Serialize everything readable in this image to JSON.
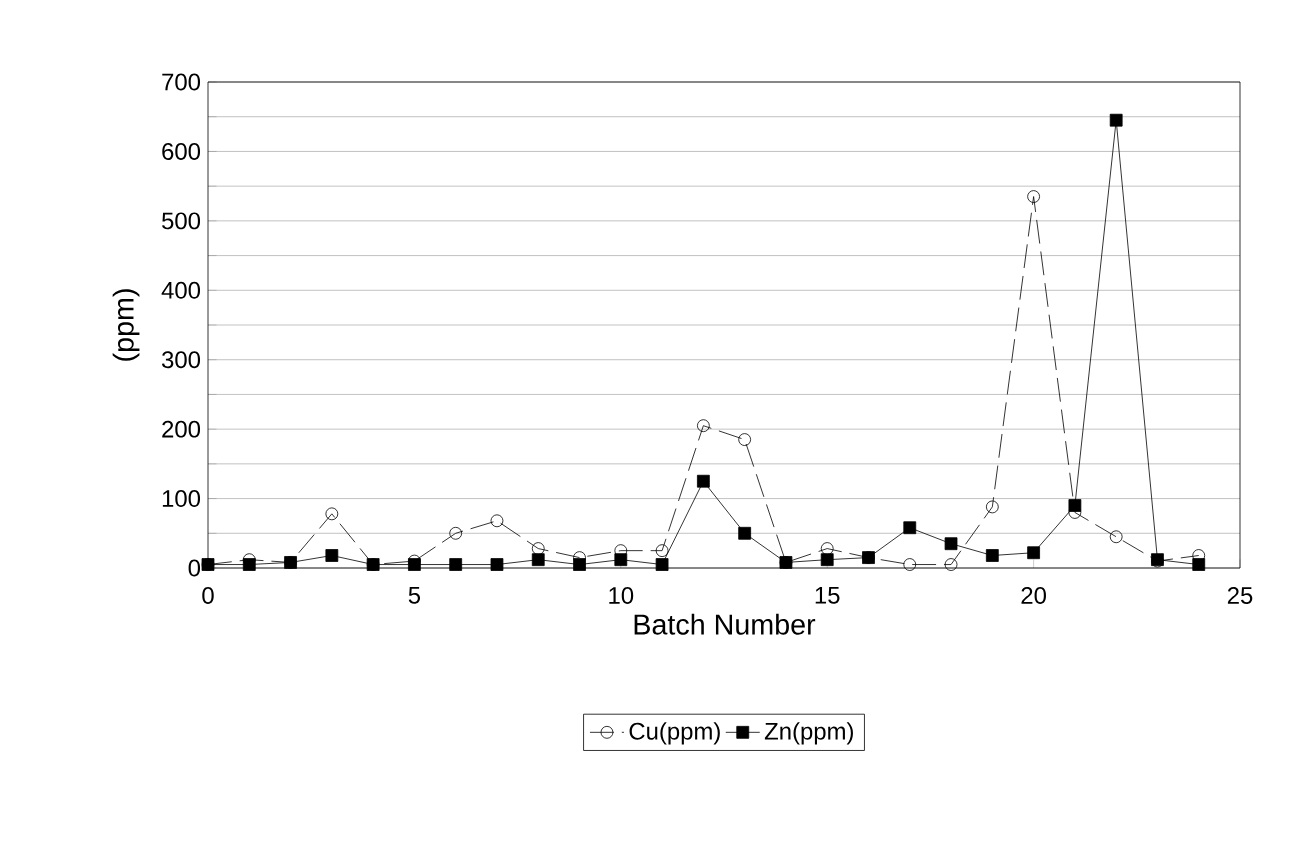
{
  "chart_data": {
    "type": "line",
    "xlabel": "Batch Number",
    "ylabel": "(ppm)",
    "x": [
      0,
      1,
      2,
      3,
      4,
      5,
      6,
      7,
      8,
      9,
      10,
      11,
      12,
      13,
      14,
      15,
      16,
      17,
      18,
      19,
      20,
      21,
      22,
      23,
      24
    ],
    "series": [
      {
        "name": "Cu(ppm)",
        "color": "#000000",
        "marker": "circle",
        "line_style": "dashed",
        "values": [
          5,
          12,
          8,
          78,
          5,
          10,
          50,
          68,
          28,
          15,
          25,
          25,
          205,
          185,
          8,
          28,
          15,
          5,
          5,
          88,
          535,
          80,
          45,
          10,
          18
        ]
      },
      {
        "name": "Zn(ppm)",
        "color": "#000000",
        "marker": "square",
        "line_style": "solid",
        "values": [
          5,
          5,
          8,
          18,
          5,
          5,
          5,
          5,
          12,
          5,
          12,
          5,
          125,
          50,
          8,
          12,
          15,
          58,
          35,
          18,
          22,
          90,
          645,
          12,
          5
        ]
      }
    ],
    "xlim": [
      0,
      25
    ],
    "xticks": [
      0,
      5,
      10,
      15,
      20,
      25
    ],
    "ylim": [
      0,
      700
    ],
    "yticks": [
      0,
      {
        "value": 50,
        "label": null
      },
      100,
      {
        "value": 150,
        "label": null
      },
      200,
      {
        "value": 250,
        "label": null
      },
      300,
      {
        "value": 350,
        "label": null
      },
      400,
      {
        "value": 450,
        "label": null
      },
      500,
      {
        "value": 550,
        "label": null
      },
      600,
      {
        "value": 650,
        "label": null
      },
      700
    ],
    "grid": "y",
    "legend": "bottom"
  }
}
